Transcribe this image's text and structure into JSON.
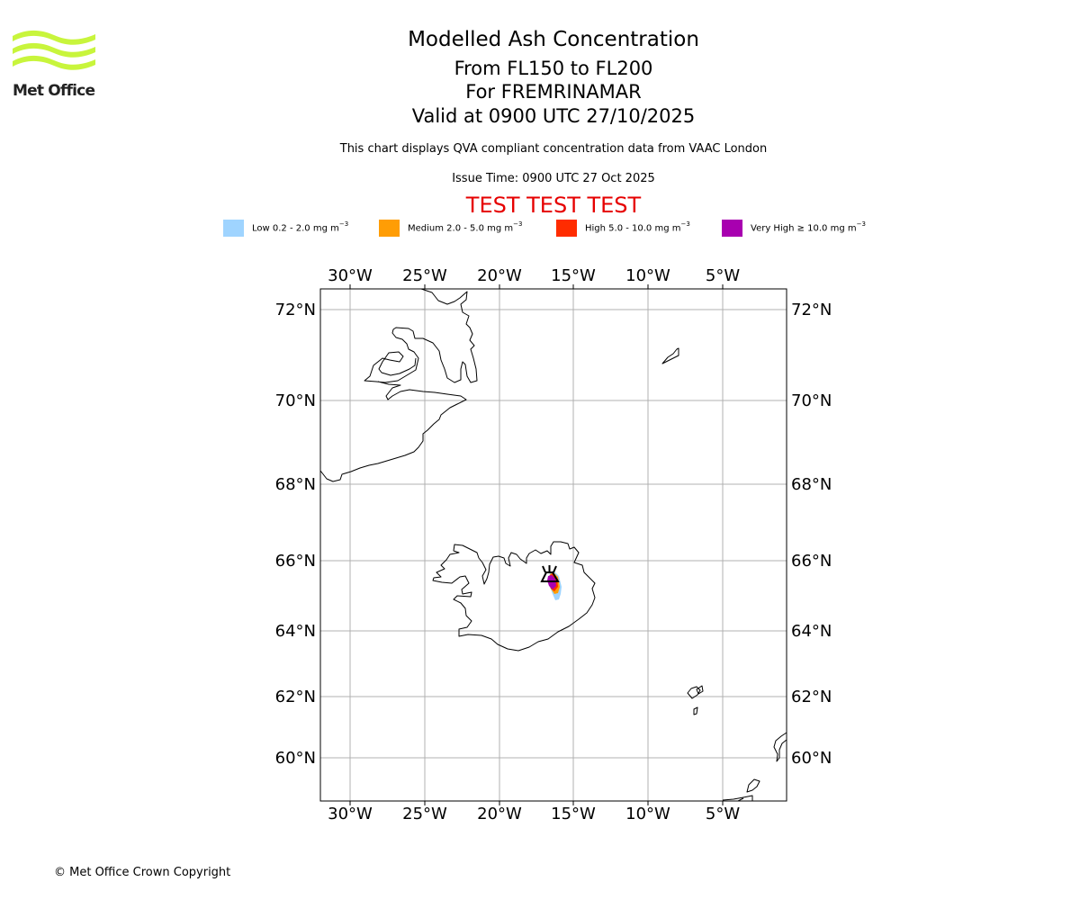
{
  "logo": {
    "text": "Met Office",
    "color": "#c8f53c"
  },
  "header": {
    "title": "Modelled Ash Concentration",
    "levels": "From FL150 to FL200",
    "volcano": "For FREMRINAMAR",
    "valid": "Valid at 0900 UTC 27/10/2025",
    "description": "This chart displays QVA compliant concentration data from VAAC London",
    "issue_time": "Issue Time: 0900 UTC 27 Oct 2025",
    "test_banner": "TEST TEST TEST"
  },
  "legend": [
    {
      "label": "Low 0.2 - 2.0 mg m",
      "color": "#9fd4ff"
    },
    {
      "label": "Medium 2.0 - 5.0 mg m",
      "color": "#ff9d05"
    },
    {
      "label": "High 5.0 - 10.0 mg m",
      "color": "#ff2c00"
    },
    {
      "label": "Very High ≥ 10.0 mg m",
      "color": "#a800b0"
    }
  ],
  "legend_unit_exponent": "−3",
  "map": {
    "lon_ticks": [
      "30°W",
      "25°W",
      "20°W",
      "15°W",
      "10°W",
      "5°W"
    ],
    "lat_ticks": [
      "72°N",
      "70°N",
      "68°N",
      "66°N",
      "64°N",
      "62°N",
      "60°N"
    ],
    "volcano_marker": {
      "lon": -16.65,
      "lat": 65.43
    }
  },
  "footer": {
    "copyright": "© Met Office Crown Copyright"
  }
}
